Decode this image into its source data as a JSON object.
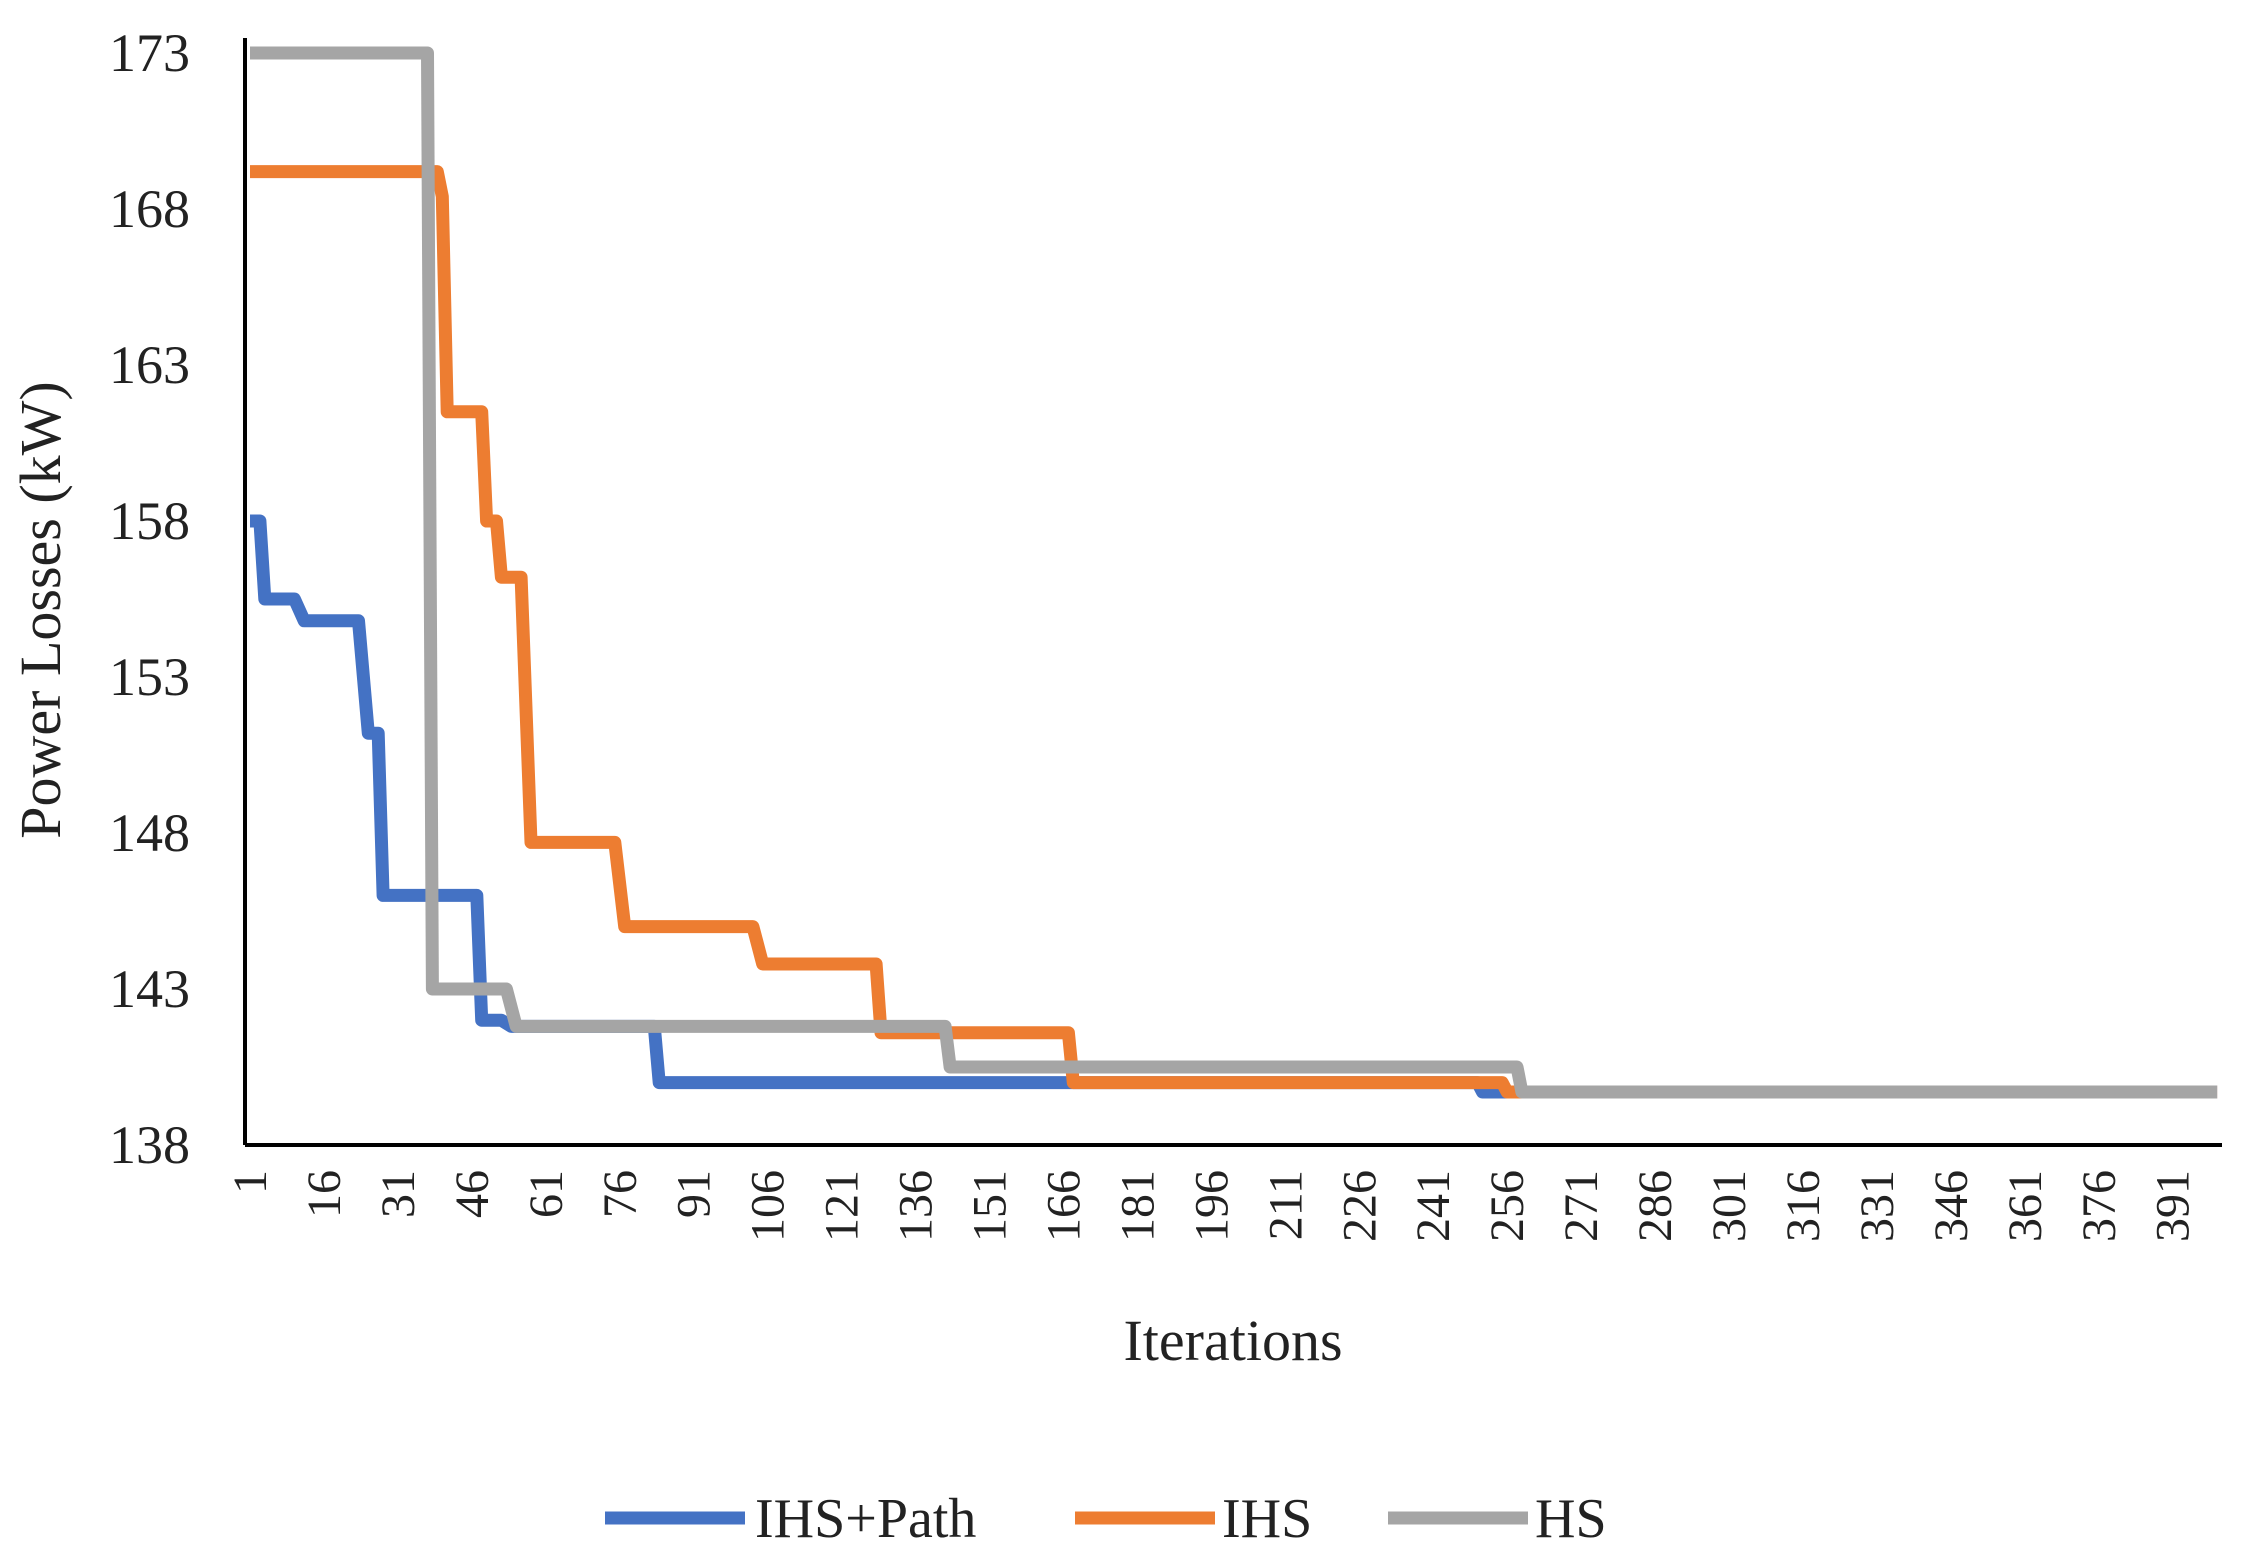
{
  "chart_data": {
    "type": "line",
    "title": "",
    "xlabel": "Iterations",
    "ylabel": "Power Losses (kW)",
    "ylim": [
      138,
      173
    ],
    "xlim": [
      1,
      400
    ],
    "y_ticks": [
      "173",
      "168",
      "163",
      "158",
      "153",
      "148",
      "143",
      "138"
    ],
    "x_ticks": [
      "1",
      "16",
      "31",
      "46",
      "61",
      "76",
      "91",
      "106",
      "121",
      "136",
      "151",
      "166",
      "181",
      "196",
      "211",
      "226",
      "241",
      "256",
      "271",
      "286",
      "301",
      "316",
      "331",
      "346",
      "361",
      "376",
      "391"
    ],
    "grid": false,
    "legend_position": "bottom",
    "series": [
      {
        "name": "IHS+Path",
        "color": "#4472C4",
        "points": [
          [
            1,
            158
          ],
          [
            3,
            158
          ],
          [
            4,
            155.5
          ],
          [
            10,
            155.5
          ],
          [
            12,
            154.8
          ],
          [
            23,
            154.8
          ],
          [
            25,
            151.2
          ],
          [
            27,
            151.2
          ],
          [
            28,
            146
          ],
          [
            47,
            146
          ],
          [
            48,
            142
          ],
          [
            52,
            142
          ],
          [
            54,
            141.8
          ],
          [
            83,
            141.8
          ],
          [
            84,
            140
          ],
          [
            250,
            140
          ],
          [
            251,
            139.7
          ],
          [
            400,
            139.7
          ]
        ]
      },
      {
        "name": "IHS",
        "color": "#ED7D31",
        "points": [
          [
            1,
            169.2
          ],
          [
            39,
            169.2
          ],
          [
            40,
            168.4
          ],
          [
            41,
            161.5
          ],
          [
            48,
            161.5
          ],
          [
            49,
            158
          ],
          [
            51,
            158
          ],
          [
            52,
            156.2
          ],
          [
            56,
            156.2
          ],
          [
            58,
            147.7
          ],
          [
            75,
            147.7
          ],
          [
            77,
            145
          ],
          [
            103,
            145
          ],
          [
            105,
            143.8
          ],
          [
            128,
            143.8
          ],
          [
            129,
            141.6
          ],
          [
            167,
            141.6
          ],
          [
            168,
            140
          ],
          [
            255,
            140
          ],
          [
            256,
            139.7
          ],
          [
            400,
            139.7
          ]
        ]
      },
      {
        "name": "HS",
        "color": "#A5A5A5",
        "points": [
          [
            1,
            173
          ],
          [
            37,
            173
          ],
          [
            38,
            143
          ],
          [
            53,
            143
          ],
          [
            55,
            141.8
          ],
          [
            142,
            141.8
          ],
          [
            143,
            140.5
          ],
          [
            258,
            140.5
          ],
          [
            259,
            139.7
          ],
          [
            400,
            139.7
          ]
        ]
      }
    ]
  }
}
